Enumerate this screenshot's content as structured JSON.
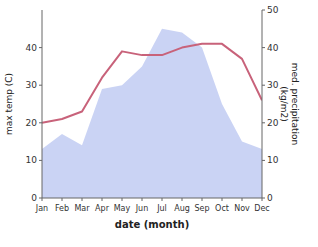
{
  "chart_data": {
    "type": "line",
    "xlabel": "date (month)",
    "ylabel": "max temp (C)",
    "y2label": "med. precipitation\n(kg/m2)",
    "categories": [
      "Jan",
      "Feb",
      "Mar",
      "Apr",
      "May",
      "Jun",
      "Jul",
      "Aug",
      "Sep",
      "Oct",
      "Nov",
      "Dec"
    ],
    "series": [
      {
        "type": "area",
        "color": "#b8c4f0",
        "values": [
          13,
          17,
          14,
          29,
          30,
          35,
          45,
          44,
          40,
          25,
          15,
          13
        ]
      },
      {
        "type": "line",
        "color": "#c8627a",
        "axis": "y2",
        "values": [
          20,
          21,
          23,
          32,
          39,
          38,
          38,
          40,
          41,
          41,
          37,
          26
        ]
      }
    ],
    "ylim": [
      0,
      50
    ],
    "yticks": [
      0,
      10,
      20,
      30,
      40
    ],
    "y2lim": [
      0,
      50
    ],
    "y2ticks": [
      0,
      10,
      20,
      30,
      40,
      50
    ],
    "grid": false
  }
}
